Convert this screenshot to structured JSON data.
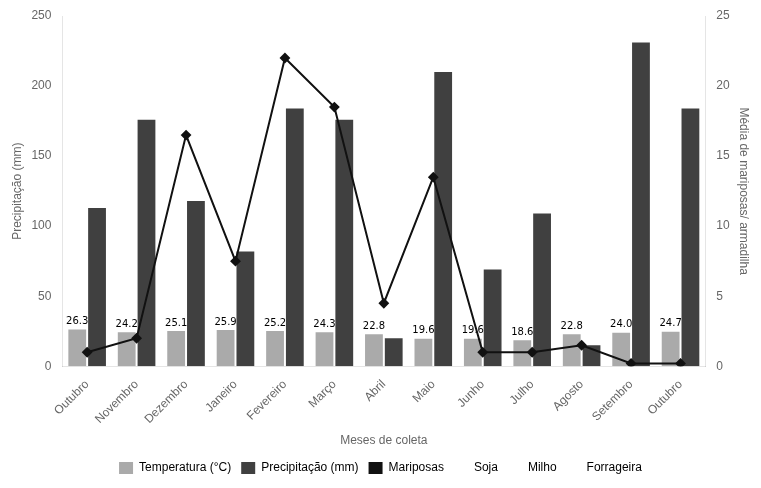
{
  "chart_data": {
    "type": "bar",
    "xlabel": "Meses de coleta",
    "ylabel": "Precipitação (mm)",
    "y2label": "Média de mariposas/ armadilha",
    "categories": [
      "Outubro",
      "Novembro",
      "Dezembro",
      "Janeiro",
      "Fevereiro",
      "Março",
      "Abril",
      "Maio",
      "Junho",
      "Julho",
      "Agosto",
      "Setembro",
      "Outubro"
    ],
    "series": [
      {
        "name": "Temperatura (°C)",
        "type": "bar",
        "color": "#aaaaaa",
        "values": [
          26.3,
          24.2,
          25.1,
          25.9,
          25.2,
          24.3,
          22.8,
          19.6,
          19.6,
          18.6,
          22.8,
          24.0,
          24.7
        ],
        "data_labels": true,
        "value_labels": [
          "26.3",
          "24.2",
          "25.1",
          "25.9",
          "25.2",
          "24.3",
          "22.8",
          "19.6",
          "19.6",
          "18.6",
          "22.8",
          "24.0",
          "24.7"
        ]
      },
      {
        "name": "Precipitação (mm)",
        "type": "bar",
        "color": "#404040",
        "values": [
          113,
          176,
          118,
          82,
          184,
          176,
          20,
          210,
          69,
          109,
          15,
          231,
          184
        ]
      },
      {
        "name": "Mariposas",
        "type": "line",
        "axis": "y2",
        "color": "#111111",
        "marker": "diamond",
        "line_style": "solid",
        "values": [
          1.0,
          2.0,
          16.5,
          7.5,
          22.0,
          18.5,
          4.5,
          13.5,
          1.0,
          1.0,
          1.5,
          0.2,
          0.2
        ]
      }
    ],
    "annotations": [
      "Soja",
      "Milho",
      "Forrageira"
    ],
    "ylim": [
      0,
      250
    ],
    "yticks": [
      0,
      50,
      100,
      150,
      200,
      250
    ],
    "y2lim": [
      0,
      25
    ],
    "y2ticks": [
      0,
      5,
      10,
      15,
      20,
      25
    ],
    "grid": false,
    "legend": "bottom"
  }
}
